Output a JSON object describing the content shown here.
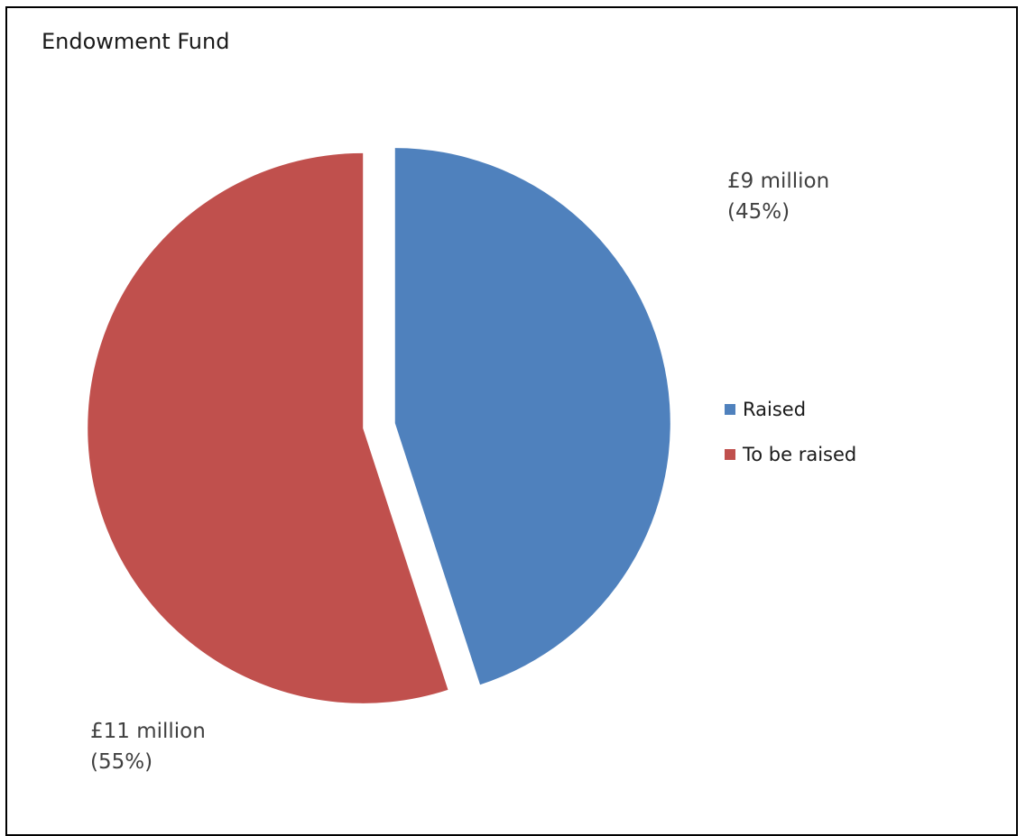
{
  "chart_data": {
    "type": "pie",
    "title": "Endowment Fund",
    "categories": [
      "Raised",
      "To be raised"
    ],
    "values": [
      9,
      11
    ],
    "percentages": [
      45,
      55
    ],
    "data_labels": [
      {
        "amount": "£9 million",
        "percent": "(45%)"
      },
      {
        "amount": "£11 million",
        "percent": "(55%)"
      }
    ],
    "colors": [
      "#4F81BD",
      "#C0504D"
    ],
    "legend": {
      "position": "right",
      "entries": [
        "Raised",
        "To be raised"
      ]
    },
    "exploded": true
  }
}
